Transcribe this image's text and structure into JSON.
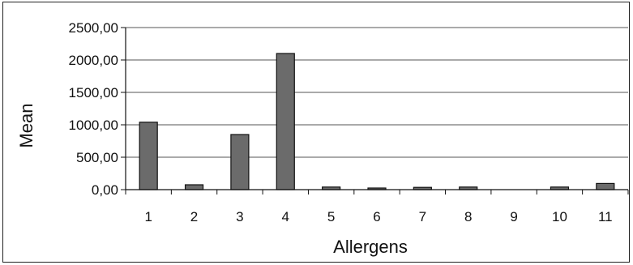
{
  "chart_data": {
    "type": "bar",
    "title": "",
    "xlabel": "Allergens",
    "ylabel": "Mean",
    "categories": [
      "1",
      "2",
      "3",
      "4",
      "5",
      "6",
      "7",
      "8",
      "9",
      "10",
      "11"
    ],
    "values": [
      1040,
      75,
      850,
      2100,
      40,
      25,
      35,
      40,
      0,
      40,
      95
    ],
    "ylim": [
      0,
      2500
    ],
    "yticks": [
      0,
      500,
      1000,
      1500,
      2000,
      2500
    ],
    "ytick_labels": [
      "0,00",
      "500,00",
      "1000,00",
      "1500,00",
      "2000,00",
      "2500,00"
    ],
    "grid": true,
    "legend": "none",
    "colors": {
      "bar": "#6b6b6b",
      "bar_stroke": "#111111",
      "grid": "#555555"
    }
  }
}
